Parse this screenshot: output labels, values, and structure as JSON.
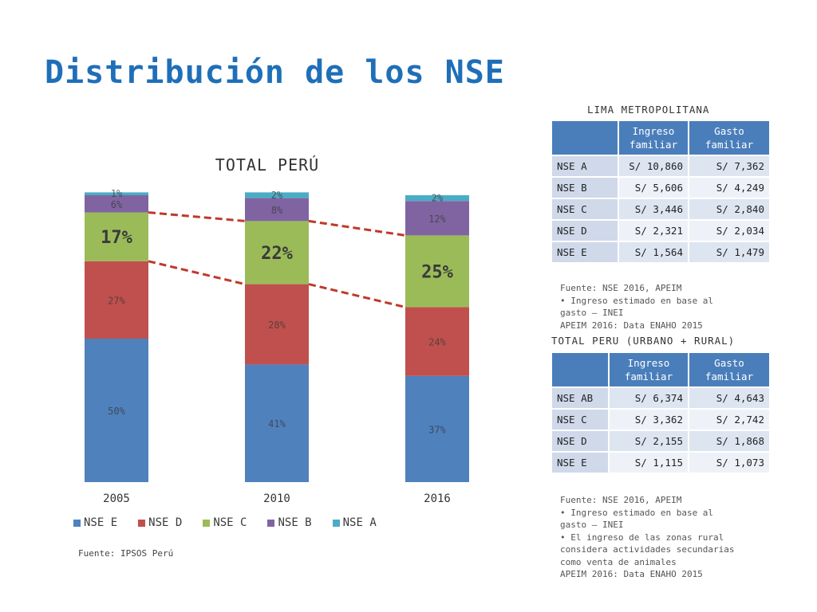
{
  "title": "Distribución de los NSE",
  "chart_data": {
    "type": "bar",
    "stacked": true,
    "title": "TOTAL PERÚ",
    "categories": [
      "2005",
      "2010",
      "2016"
    ],
    "series": [
      {
        "name": "NSE E",
        "values": [
          50,
          41,
          37
        ],
        "labels": [
          "50%",
          "41%",
          "37%"
        ],
        "color": "#4f81bd"
      },
      {
        "name": "NSE D",
        "values": [
          27,
          28,
          24
        ],
        "labels": [
          "27%",
          "28%",
          "24%"
        ],
        "color": "#c0504d"
      },
      {
        "name": "NSE C",
        "values": [
          17,
          22,
          25
        ],
        "labels": [
          "17%",
          "22%",
          "25%"
        ],
        "color": "#9bbb59"
      },
      {
        "name": "NSE B",
        "values": [
          6,
          8,
          12
        ],
        "labels": [
          "6%",
          "8%",
          "12%"
        ],
        "color": "#8064a2"
      },
      {
        "name": "NSE A",
        "values": [
          1,
          2,
          2
        ],
        "labels": [
          "1%",
          "2%",
          "2%"
        ],
        "color": "#4bacc6"
      }
    ],
    "ylim": [
      0,
      100
    ],
    "grid": false,
    "legend_position": "bottom",
    "trend_line_color": "#c0392b"
  },
  "source_left": "Fuente: IPSOS Perú",
  "lima": {
    "caption": "LIMA METROPOLITANA",
    "headers": [
      "",
      "Ingreso familiar",
      "Gasto familiar"
    ],
    "rows": [
      [
        "NSE A",
        "S/ 10,860",
        "S/ 7,362"
      ],
      [
        "NSE B",
        "S/ 5,606",
        "S/ 4,249"
      ],
      [
        "NSE C",
        "S/ 3,446",
        "S/ 2,840"
      ],
      [
        "NSE D",
        "S/ 2,321",
        "S/ 2,034"
      ],
      [
        "NSE E",
        "S/ 1,564",
        "S/ 1,479"
      ]
    ],
    "notes": [
      "Fuente: NSE 2016, APEIM",
      "• Ingreso estimado en base al",
      "gasto – INEI",
      "APEIM 2016: Data ENAHO 2015"
    ]
  },
  "peru": {
    "caption": "TOTAL PERU (URBANO + RURAL)",
    "headers": [
      "",
      "Ingreso familiar",
      "Gasto familiar"
    ],
    "rows": [
      [
        "NSE AB",
        "S/ 6,374",
        "S/ 4,643"
      ],
      [
        "NSE C",
        "S/ 3,362",
        "S/ 2,742"
      ],
      [
        "NSE D",
        "S/ 2,155",
        "S/ 1,868"
      ],
      [
        "NSE E",
        "S/ 1,115",
        "S/ 1,073"
      ]
    ],
    "notes": [
      "Fuente: NSE 2016, APEIM",
      "• Ingreso estimado en base al",
      "gasto – INEI",
      "• El ingreso de las zonas rural",
      "considera actividades secundarias",
      "como venta de animales",
      "APEIM 2016: Data ENAHO 2015"
    ]
  }
}
